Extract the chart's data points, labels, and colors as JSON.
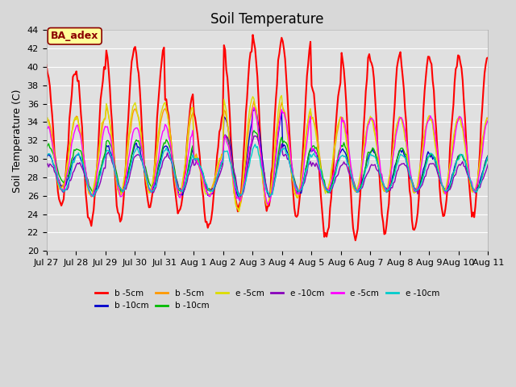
{
  "title": "Soil Temperature",
  "ylabel": "Soil Temperature (C)",
  "xlabel": "",
  "ylim": [
    20,
    44
  ],
  "yticks": [
    20,
    22,
    24,
    26,
    28,
    30,
    32,
    34,
    36,
    38,
    40,
    42,
    44
  ],
  "fig_bg_color": "#d8d8d8",
  "plot_bg_color": "#e0e0e0",
  "annotation_text": "BA_adex",
  "annotation_bg": "#ffff99",
  "annotation_border": "#8b0000",
  "annotation_text_color": "#8b0000",
  "series": [
    {
      "label": "b -5cm",
      "color": "#ff0000",
      "lw": 1.5
    },
    {
      "label": "b -10cm",
      "color": "#0000cc",
      "lw": 1.0
    },
    {
      "label": "b -5cm",
      "color": "#ff9900",
      "lw": 1.0
    },
    {
      "label": "b -10cm",
      "color": "#00bb00",
      "lw": 1.0
    },
    {
      "label": "e -5cm",
      "color": "#dddd00",
      "lw": 1.0
    },
    {
      "label": "e -10cm",
      "color": "#8800bb",
      "lw": 1.0
    },
    {
      "label": "e -5cm",
      "color": "#ff00ff",
      "lw": 1.0
    },
    {
      "label": "e -10cm",
      "color": "#00cccc",
      "lw": 1.0
    }
  ],
  "xtick_labels": [
    "Jul 27",
    "Jul 28",
    "Jul 29",
    "Jul 30",
    "Jul 31",
    "Aug 1",
    "Aug 2",
    "Aug 3",
    "Aug 4",
    "Aug 5",
    "Aug 6",
    "Aug 7",
    "Aug 8",
    "Aug 9",
    "Aug 10",
    "Aug 11"
  ],
  "title_fontsize": 12,
  "label_fontsize": 9,
  "tick_fontsize": 8
}
